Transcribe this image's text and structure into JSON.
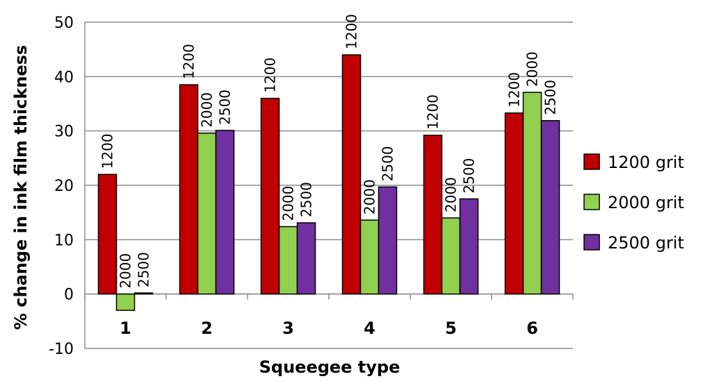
{
  "chart_data": {
    "type": "bar",
    "title": "",
    "xlabel": "Squeegee type",
    "ylabel": "% change in ink film thickness",
    "ylim": [
      -10,
      50
    ],
    "yticks": [
      -10,
      0,
      10,
      20,
      30,
      40,
      50
    ],
    "grid": true,
    "legend_position": "right",
    "categories": [
      "1",
      "2",
      "3",
      "4",
      "5",
      "6"
    ],
    "series": [
      {
        "name": "1200 grit",
        "label": "1200",
        "color": "#c00000",
        "values": [
          22,
          38.5,
          36,
          44,
          29.2,
          33.3
        ]
      },
      {
        "name": "2000 grit",
        "label": "2000",
        "color": "#92d050",
        "values": [
          -3,
          29.6,
          12.4,
          13.6,
          14,
          37.1
        ]
      },
      {
        "name": "2500 grit",
        "label": "2500",
        "color": "#7030a0",
        "values": [
          0.2,
          30.1,
          13.1,
          19.7,
          17.5,
          31.9
        ]
      }
    ]
  }
}
